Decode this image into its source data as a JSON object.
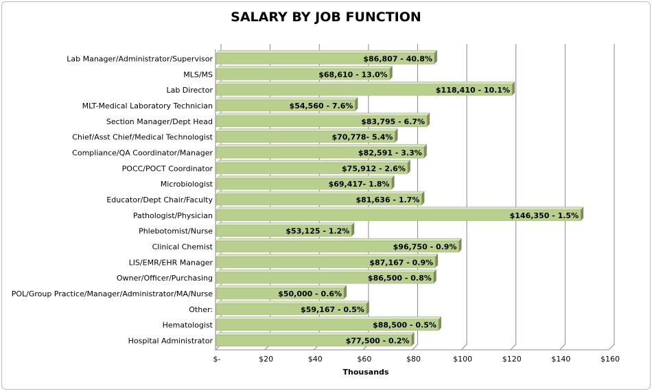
{
  "chart_data": {
    "type": "bar",
    "orientation": "horizontal",
    "title": "SALARY BY JOB FUNCTION",
    "xlabel": "Thousands",
    "ylabel": "",
    "xlim": [
      0,
      160
    ],
    "x_ticks": [
      "$-",
      "$20",
      "$40",
      "$60",
      "$80",
      "$100",
      "$120",
      "$140",
      "$160"
    ],
    "grid": true,
    "legend": "none",
    "bar_color": "#b9cf8e",
    "categories": [
      "Lab Manager/Administrator/Supervisor",
      "MLS/MS",
      "Lab Director",
      "MLT-Medical Laboratory Technician",
      "Section Manager/Dept Head",
      "Chief/Asst Chief/Medical Technologist",
      "Compliance/QA Coordinator/Manager",
      "POCC/POCT Coordinator",
      "Microbiologist",
      "Educator/Dept Chair/Faculty",
      "Pathologist/Physician",
      "Phlebotomist/Nurse",
      "Clinical Chemist",
      "LIS/EMR/EHR Manager",
      "Owner/Officer/Purchasing",
      "POL/Group Practice/Manager/Administrator/MA/Nurse",
      "Other:",
      "Hematologist",
      "Hospital Administrator"
    ],
    "values": [
      86.807,
      68.61,
      118.41,
      54.56,
      83.795,
      70.778,
      82.591,
      75.912,
      69.417,
      81.636,
      146.35,
      53.125,
      96.75,
      87.167,
      86.5,
      50.0,
      59.167,
      88.5,
      77.5
    ],
    "data_labels": [
      "$86,807 - 40.8%",
      "$68,610 - 13.0%",
      "$118,410 - 10.1%",
      "$54,560 - 7.6%",
      "$83,795 - 6.7%",
      "$70,778- 5.4%",
      "$82,591 - 3.3%",
      "$75,912 - 2.6%",
      "$69,417- 1.8%",
      "$81,636 - 1.7%",
      "$146,350 - 1.5%",
      "$53,125 - 1.2%",
      "$96,750 - 0.9%",
      "$87,167 - 0.9%",
      "$86,500 - 0.8%",
      "$50,000 - 0.6%",
      "$59,167 - 0.5%",
      "$88,500 - 0.5%",
      "$77,500 - 0.2%"
    ]
  }
}
